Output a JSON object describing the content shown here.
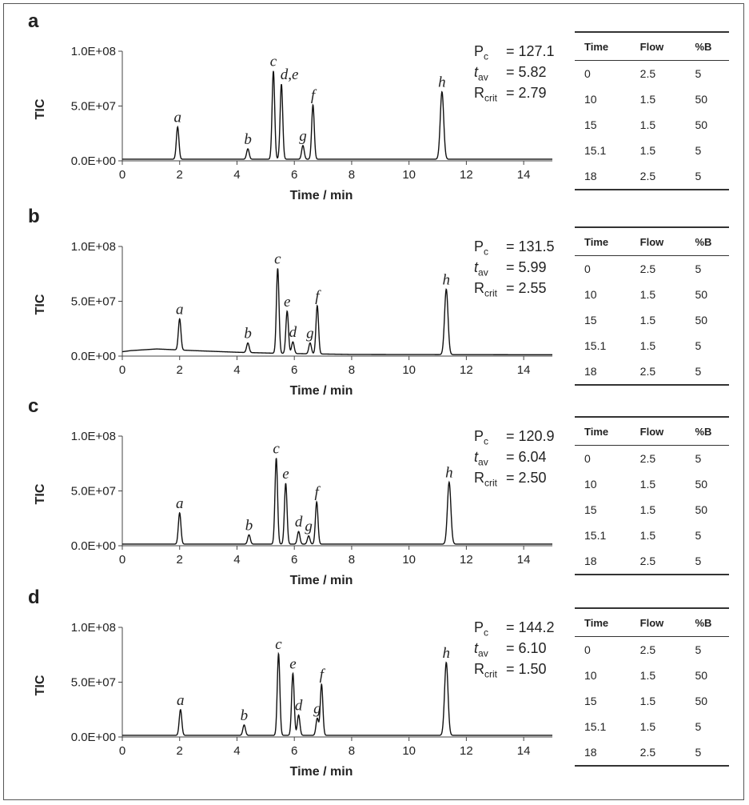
{
  "chart_data": [
    {
      "type": "line",
      "panel": "a",
      "xlabel": "Time / min",
      "ylabel": "TIC",
      "xlim": [
        0,
        15
      ],
      "ylim": [
        0,
        100000000
      ],
      "xticks": [
        "0",
        "2",
        "4",
        "6",
        "8",
        "10",
        "12",
        "14"
      ],
      "yticks": [
        "0.0E+00",
        "5.0E+07",
        "1.0E+08"
      ],
      "grid": false,
      "baseline": [
        [
          0,
          1500000
        ],
        [
          15,
          1500000
        ]
      ],
      "peaks": [
        {
          "label": "a",
          "x": 1.93,
          "y": 31000000
        },
        {
          "label": "b",
          "x": 4.38,
          "y": 11000000
        },
        {
          "label": "c",
          "x": 5.27,
          "y": 82000000
        },
        {
          "label": "d,e",
          "x": 5.55,
          "y": 70000000
        },
        {
          "label": "g",
          "x": 6.3,
          "y": 14000000
        },
        {
          "label": "f",
          "x": 6.65,
          "y": 51000000
        },
        {
          "label": "h",
          "x": 11.15,
          "y": 63000000
        }
      ],
      "stats": {
        "pc": "= 127.1",
        "tav": "= 5.82",
        "rcrit": "= 2.79"
      },
      "table": {
        "headers": [
          "Time",
          "Flow",
          "%B"
        ],
        "rows": [
          [
            "0",
            "2.5",
            "5"
          ],
          [
            "10",
            "1.5",
            "50"
          ],
          [
            "15",
            "1.5",
            "50"
          ],
          [
            "15.1",
            "1.5",
            "5"
          ],
          [
            "18",
            "2.5",
            "5"
          ]
        ]
      }
    },
    {
      "type": "line",
      "panel": "b",
      "xlabel": "Time / min",
      "ylabel": "TIC",
      "xlim": [
        0,
        15
      ],
      "ylim": [
        0,
        100000000
      ],
      "xticks": [
        "0",
        "2",
        "4",
        "6",
        "8",
        "10",
        "12",
        "14"
      ],
      "yticks": [
        "0.0E+00",
        "5.0E+07",
        "1.0E+08"
      ],
      "grid": false,
      "baseline": [
        [
          0,
          4000000
        ],
        [
          0.3,
          5000000
        ],
        [
          1.2,
          6500000
        ],
        [
          2.5,
          5000000
        ],
        [
          4,
          3500000
        ],
        [
          5.5,
          2500000
        ],
        [
          8,
          1500000
        ],
        [
          15,
          1200000
        ]
      ],
      "peaks": [
        {
          "label": "a",
          "x": 2.0,
          "y": 34000000
        },
        {
          "label": "b",
          "x": 4.38,
          "y": 12000000
        },
        {
          "label": "c",
          "x": 5.42,
          "y": 80000000
        },
        {
          "label": "e",
          "x": 5.75,
          "y": 41000000
        },
        {
          "label": "d",
          "x": 5.95,
          "y": 13000000
        },
        {
          "label": "g",
          "x": 6.55,
          "y": 12000000
        },
        {
          "label": "f",
          "x": 6.8,
          "y": 46000000
        },
        {
          "label": "h",
          "x": 11.3,
          "y": 61000000
        }
      ],
      "stats": {
        "pc": "= 131.5",
        "tav": "= 5.99",
        "rcrit": "= 2.55"
      },
      "table": {
        "headers": [
          "Time",
          "Flow",
          "%B"
        ],
        "rows": [
          [
            "0",
            "2.5",
            "5"
          ],
          [
            "10",
            "1.5",
            "50"
          ],
          [
            "15",
            "1.5",
            "50"
          ],
          [
            "15.1",
            "1.5",
            "5"
          ],
          [
            "18",
            "2.5",
            "5"
          ]
        ]
      }
    },
    {
      "type": "line",
      "panel": "c",
      "xlabel": "Time / min",
      "ylabel": "TIC",
      "xlim": [
        0,
        15
      ],
      "ylim": [
        0,
        100000000
      ],
      "xticks": [
        "0",
        "2",
        "4",
        "6",
        "8",
        "10",
        "12",
        "14"
      ],
      "yticks": [
        "0.0E+00",
        "5.0E+07",
        "1.0E+08"
      ],
      "grid": false,
      "baseline": [
        [
          0,
          1500000
        ],
        [
          15,
          1500000
        ]
      ],
      "peaks": [
        {
          "label": "a",
          "x": 2.0,
          "y": 30000000
        },
        {
          "label": "b",
          "x": 4.42,
          "y": 10000000
        },
        {
          "label": "c",
          "x": 5.37,
          "y": 80000000
        },
        {
          "label": "e",
          "x": 5.7,
          "y": 57000000
        },
        {
          "label": "d",
          "x": 6.15,
          "y": 13000000
        },
        {
          "label": "g",
          "x": 6.5,
          "y": 9000000
        },
        {
          "label": "f",
          "x": 6.78,
          "y": 40000000
        },
        {
          "label": "h",
          "x": 11.4,
          "y": 58000000
        }
      ],
      "stats": {
        "pc": "= 120.9",
        "tav": "= 6.04",
        "rcrit": "= 2.50"
      },
      "table": {
        "headers": [
          "Time",
          "Flow",
          "%B"
        ],
        "rows": [
          [
            "0",
            "2.5",
            "5"
          ],
          [
            "10",
            "1.5",
            "50"
          ],
          [
            "15",
            "1.5",
            "50"
          ],
          [
            "15.1",
            "1.5",
            "5"
          ],
          [
            "18",
            "2.5",
            "5"
          ]
        ]
      }
    },
    {
      "type": "line",
      "panel": "d",
      "xlabel": "Time / min",
      "ylabel": "TIC",
      "xlim": [
        0,
        15
      ],
      "ylim": [
        0,
        100000000
      ],
      "xticks": [
        "0",
        "2",
        "4",
        "6",
        "8",
        "10",
        "12",
        "14"
      ],
      "yticks": [
        "0.0E+00",
        "5.0E+07",
        "1.0E+08"
      ],
      "grid": false,
      "baseline": [
        [
          0,
          1500000
        ],
        [
          15,
          1500000
        ]
      ],
      "peaks": [
        {
          "label": "a",
          "x": 2.03,
          "y": 25000000
        },
        {
          "label": "b",
          "x": 4.25,
          "y": 11000000
        },
        {
          "label": "c",
          "x": 5.45,
          "y": 76000000
        },
        {
          "label": "e",
          "x": 5.95,
          "y": 58000000
        },
        {
          "label": "d",
          "x": 6.15,
          "y": 20000000
        },
        {
          "label": "g",
          "x": 6.8,
          "y": 17000000
        },
        {
          "label": "f",
          "x": 6.95,
          "y": 48000000
        },
        {
          "label": "h",
          "x": 11.3,
          "y": 68000000
        }
      ],
      "stats": {
        "pc": "= 144.2",
        "tav": "= 6.10",
        "rcrit": "= 1.50"
      },
      "table": {
        "headers": [
          "Time",
          "Flow",
          "%B"
        ],
        "rows": [
          [
            "0",
            "2.5",
            "5"
          ],
          [
            "10",
            "1.5",
            "50"
          ],
          [
            "15",
            "1.5",
            "50"
          ],
          [
            "15.1",
            "1.5",
            "5"
          ],
          [
            "18",
            "2.5",
            "5"
          ]
        ]
      }
    }
  ],
  "stat_symbols": {
    "pc": "P",
    "pc_sub": "c",
    "tav": "t",
    "tav_sub": "av",
    "rcrit": "R",
    "rcrit_sub": "crit"
  }
}
